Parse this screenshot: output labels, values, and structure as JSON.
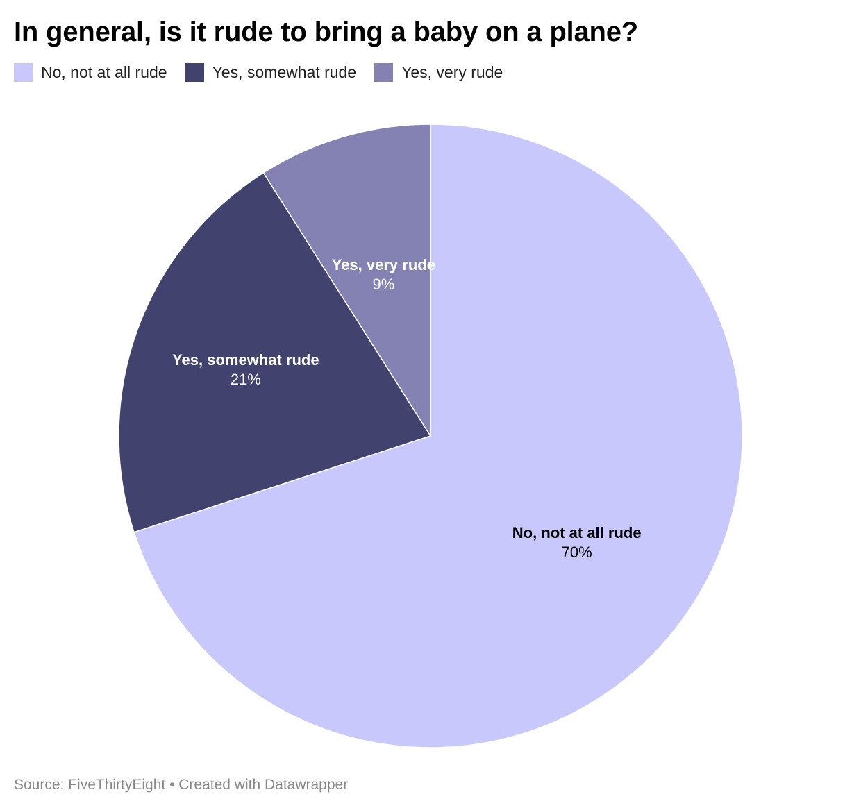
{
  "header": {
    "title": "In general, is it rude to bring a baby on a plane?"
  },
  "legend": {
    "items": [
      {
        "label": "No, not at all rude",
        "color": "#c8c8fd"
      },
      {
        "label": "Yes, somewhat rude",
        "color": "#41426d"
      },
      {
        "label": "Yes, very rude",
        "color": "#8382b3"
      }
    ]
  },
  "footer": {
    "source": "Source: FiveThirtyEight • Created with Datawrapper"
  },
  "chart_data": {
    "type": "pie",
    "title": "In general, is it rude to bring a baby on a plane?",
    "categories": [
      "No, not at all rude",
      "Yes, somewhat rude",
      "Yes, very rude"
    ],
    "values": [
      70,
      21,
      9
    ],
    "value_labels": [
      "70%",
      "21%",
      "9%"
    ],
    "colors": [
      "#c8c8fd",
      "#41426d",
      "#8382b3"
    ],
    "label_colors": [
      "#000000",
      "#ffffff",
      "#ffffff"
    ],
    "legend": "top-left",
    "direction": "clockwise-from-top"
  }
}
